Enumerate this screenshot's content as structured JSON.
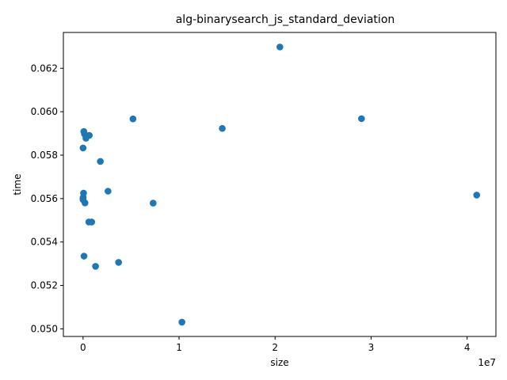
{
  "chart_data": {
    "type": "scatter",
    "title": "alg-binarysearch_js_standard_deviation",
    "xlabel": "size",
    "ylabel": "time",
    "x_offset_label": "1e7",
    "xlim": [
      -2050000,
      43000000
    ],
    "ylim": [
      0.04965,
      0.06365
    ],
    "xticks": [
      0,
      10000000,
      20000000,
      30000000,
      40000000
    ],
    "xtick_labels": [
      "0",
      "1",
      "2",
      "3",
      "4"
    ],
    "yticks": [
      0.05,
      0.052,
      0.054,
      0.056,
      0.058,
      0.06,
      0.062
    ],
    "ytick_labels": [
      "0.050",
      "0.052",
      "0.054",
      "0.056",
      "0.058",
      "0.060",
      "0.062"
    ],
    "grid": false,
    "marker_color": "#1f77b4",
    "points": [
      {
        "x": 10,
        "y": 0.05833
      },
      {
        "x": 100,
        "y": 0.056
      },
      {
        "x": 1000,
        "y": 0.05595
      },
      {
        "x": 10000,
        "y": 0.05605
      },
      {
        "x": 50000,
        "y": 0.05625
      },
      {
        "x": 80000,
        "y": 0.05909
      },
      {
        "x": 100000,
        "y": 0.05335
      },
      {
        "x": 150000,
        "y": 0.05897
      },
      {
        "x": 200000,
        "y": 0.0558
      },
      {
        "x": 300000,
        "y": 0.05878
      },
      {
        "x": 600000,
        "y": 0.05492
      },
      {
        "x": 650000,
        "y": 0.05891
      },
      {
        "x": 900000,
        "y": 0.05492
      },
      {
        "x": 1300000,
        "y": 0.05288
      },
      {
        "x": 1800000,
        "y": 0.05771
      },
      {
        "x": 2600000,
        "y": 0.05634
      },
      {
        "x": 3700000,
        "y": 0.05306
      },
      {
        "x": 5200000,
        "y": 0.05967
      },
      {
        "x": 7300000,
        "y": 0.05579
      },
      {
        "x": 10300000,
        "y": 0.05031
      },
      {
        "x": 14500000,
        "y": 0.05923
      },
      {
        "x": 20500000,
        "y": 0.06298
      },
      {
        "x": 29000000,
        "y": 0.05968
      },
      {
        "x": 41000000,
        "y": 0.05616
      }
    ]
  }
}
